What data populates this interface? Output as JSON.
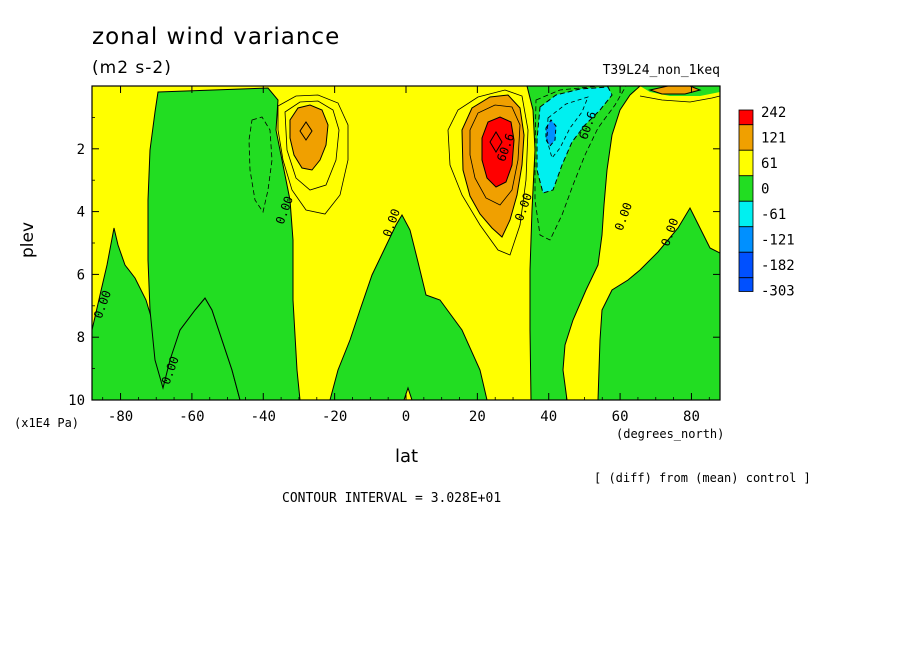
{
  "title": "zonal wind variance",
  "units": "(m2 s-2)",
  "run_label": "T39L24_non_1keq",
  "footer": {
    "diff_note": "[ (diff) from (mean) control ]",
    "contour_interval": "CONTOUR INTERVAL = 3.028E+01"
  },
  "chart_data": {
    "type": "heatmap",
    "xlabel": "lat",
    "xunit": "(degrees_north)",
    "ylabel": "plev",
    "yunit": "(x1E4 Pa)",
    "xlim": [
      -88,
      88
    ],
    "ylim": [
      10,
      0
    ],
    "x_ticks": [
      -80,
      -60,
      -40,
      -20,
      0,
      20,
      40,
      60,
      80
    ],
    "x_tick_labels": [
      "-80",
      "-60",
      "-40",
      "-20",
      "0",
      "20",
      "40",
      "60",
      "80"
    ],
    "y_ticks": [
      2,
      4,
      6,
      8,
      10
    ],
    "y_tick_labels": [
      "2",
      "4",
      "6",
      "8",
      "10"
    ],
    "contour_interval": 30.28,
    "legend": {
      "placement": "right",
      "levels": [
        "242",
        "121",
        "61",
        "0",
        "-61",
        "-121",
        "-182",
        "-303"
      ],
      "colors": [
        "#ff0000",
        "#f0a000",
        "#ffff00",
        "#22dd22",
        "#00f0f0",
        "#0090ff",
        "#0050ff",
        "#0050ff"
      ]
    },
    "features": [
      {
        "kind": "max",
        "lat": 25,
        "plev": 2.0,
        "value": 242
      },
      {
        "kind": "max",
        "lat": -29,
        "plev": 1.6,
        "value": 121
      },
      {
        "kind": "min",
        "lat": 40,
        "plev": 1.5,
        "value": -121
      },
      {
        "kind": "max",
        "lat": 73,
        "plev": 0.1,
        "value": 61
      }
    ],
    "contour_labels": [
      {
        "text": "0.00",
        "lat": -84,
        "plev": 7.0
      },
      {
        "text": "0.00",
        "lat": -65,
        "plev": 9.1
      },
      {
        "text": "0.00",
        "lat": -33,
        "plev": 4.0
      },
      {
        "text": "0.00",
        "lat": -3,
        "plev": 4.4
      },
      {
        "text": "60.6",
        "lat": 29,
        "plev": 2.0
      },
      {
        "text": "0.00",
        "lat": 34,
        "plev": 3.9
      },
      {
        "text": "60.6",
        "lat": 52,
        "plev": 1.3
      },
      {
        "text": "0.00",
        "lat": 62,
        "plev": 4.2
      },
      {
        "text": "0.00",
        "lat": 75,
        "plev": 4.7
      }
    ]
  }
}
